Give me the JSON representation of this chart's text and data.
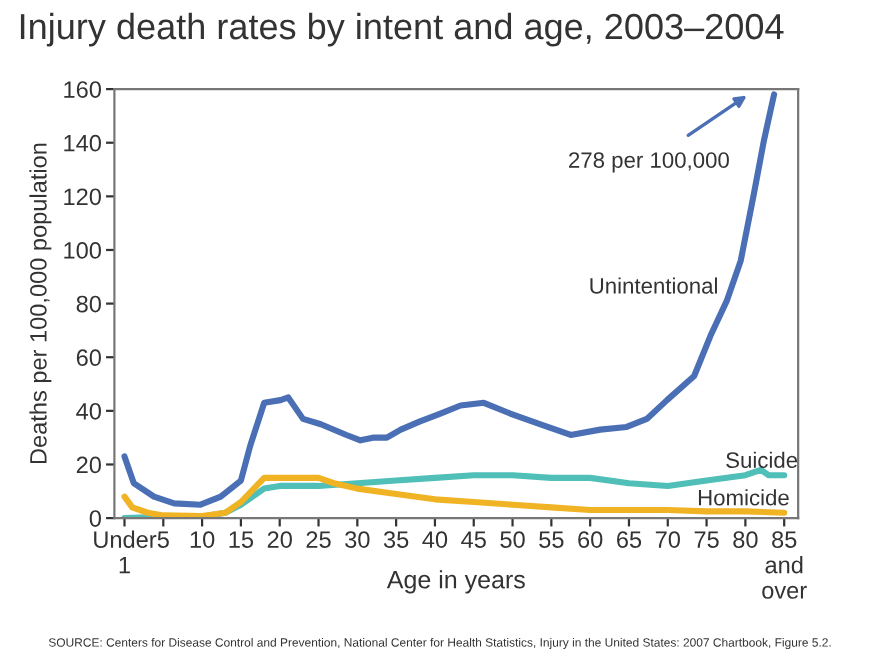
{
  "chart_data": {
    "type": "line",
    "title": "Injury death rates by intent and age, 2003–2004",
    "xlabel": "Age in years",
    "ylabel": "Deaths per 100,000 population",
    "xlim": [
      -1.3,
      86.8
    ],
    "ylim": [
      0,
      160
    ],
    "xticks": [
      {
        "value": 0,
        "label": "Under\n1"
      },
      5,
      10,
      15,
      20,
      25,
      30,
      35,
      40,
      45,
      50,
      55,
      60,
      65,
      70,
      75,
      80,
      {
        "value": 85,
        "label": "85\nand\nover"
      }
    ],
    "yticks": [
      0,
      20,
      40,
      60,
      80,
      100,
      120,
      140,
      160
    ],
    "grid": false,
    "legend": false,
    "series": [
      {
        "name": "Unintentional",
        "color": "#4a6fb5",
        "x": [
          0,
          1.2,
          3.8,
          6.4,
          9.8,
          12.4,
          15,
          16.2,
          18,
          20.1,
          21.1,
          23,
          25.3,
          28.6,
          30.4,
          32,
          33.8,
          35.6,
          38,
          40.7,
          43.3,
          46.3,
          49.7,
          53.6,
          57.5,
          61.3,
          64.7,
          67.3,
          69.9,
          73.4,
          75.5,
          77.6,
          79.4,
          81.1,
          82.4,
          83.7
        ],
        "values": [
          23,
          13,
          8,
          5.5,
          5,
          8,
          14,
          27,
          43,
          44,
          45,
          37,
          35,
          31,
          29,
          30,
          30,
          33,
          36,
          39,
          42,
          43,
          39,
          35,
          31,
          33,
          34,
          37,
          44,
          53,
          68,
          81,
          96,
          121,
          141,
          158
        ]
      },
      {
        "name": "Suicide",
        "color": "#4fbfb8",
        "x": [
          0,
          5,
          10,
          13,
          15,
          17,
          18,
          20,
          25,
          30,
          35,
          40,
          45,
          50,
          55,
          60,
          65,
          70,
          75,
          80,
          82,
          83,
          85
        ],
        "values": [
          0,
          0.5,
          0.5,
          2,
          5,
          9,
          11,
          12,
          12,
          13,
          14,
          15,
          16,
          16,
          15,
          15,
          13,
          12,
          14,
          16,
          18,
          16,
          16
        ]
      },
      {
        "name": "Homicide",
        "color": "#f0b323",
        "x": [
          0,
          1,
          3,
          5,
          10,
          13,
          15,
          17,
          18,
          20,
          25,
          27,
          30,
          35,
          40,
          45,
          50,
          55,
          60,
          65,
          70,
          75,
          80,
          85
        ],
        "values": [
          8,
          4,
          2,
          1,
          0.8,
          2,
          6,
          12,
          15,
          15,
          15,
          13,
          11,
          9,
          7,
          6,
          5,
          4,
          3,
          3,
          3,
          2.5,
          2.5,
          2
        ]
      }
    ],
    "annotations": [
      "278 per 100,000",
      "SOURCE: Centers for Disease Control and Prevention, National Center for Health Statistics, Injury in the United States: 2007 Chartbook, Figure 5.2."
    ]
  }
}
